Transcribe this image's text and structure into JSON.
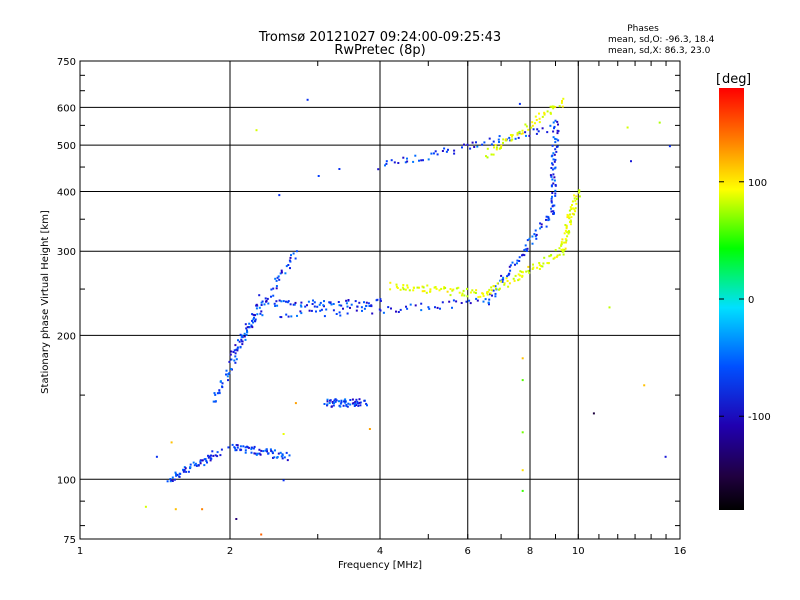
{
  "chart_data": {
    "type": "scatter",
    "title": "Tromsø 20121027 09:24:00-09:25:43",
    "subtitle": "RwPretec (8p)",
    "xlabel": "Frequency [MHz]",
    "ylabel": "Stationary phase Virtual Height [km]",
    "x_scale": "log",
    "y_scale": "log",
    "xlim": [
      1,
      16
    ],
    "ylim": [
      75,
      750
    ],
    "x_ticks": [
      1,
      2,
      4,
      6,
      8,
      10,
      16
    ],
    "x_tick_labels": [
      "1",
      "2",
      "4",
      "6",
      "8",
      "10",
      "16"
    ],
    "y_ticks": [
      75,
      100,
      200,
      300,
      400,
      500,
      600,
      750
    ],
    "y_tick_labels": [
      "75",
      "100",
      "200",
      "300",
      "400",
      "500",
      "600",
      "750"
    ],
    "grid": true,
    "phase_box": {
      "title": "Phases",
      "line_o": "mean, sd,O: -96.3, 18.4",
      "line_x": "mean, sd,X: 86.3, 23.0"
    },
    "colorbar": {
      "label": "deg",
      "range": [
        -180,
        180
      ],
      "ticks": [
        100,
        0,
        -100
      ],
      "tick_labels": [
        "100",
        "0",
        "-100"
      ]
    },
    "series": [
      {
        "name": "O",
        "color_phase": -96.3,
        "segments": [
          {
            "x": [
              1.5,
              1.9
            ],
            "y": [
              100,
              115
            ]
          },
          {
            "x": [
              1.85,
              2.3
            ],
            "y": [
              145,
              240
            ]
          },
          {
            "x": [
              2.0,
              2.7
            ],
            "y": [
              180,
              300
            ]
          },
          {
            "x": [
              2.4,
              4.0
            ],
            "y": [
              235,
              235
            ]
          },
          {
            "x": [
              2.5,
              6.5
            ],
            "y": [
              220,
              236
            ]
          },
          {
            "x": [
              6.5,
              8.8
            ],
            "y": [
              236,
              360
            ]
          },
          {
            "x": [
              8.8,
              9.0
            ],
            "y": [
              360,
              560
            ]
          },
          {
            "x": [
              4.0,
              8.8
            ],
            "y": [
              455,
              545
            ]
          },
          {
            "x": [
              2.0,
              2.6
            ],
            "y": [
              118,
              112
            ]
          },
          {
            "x": [
              3.1,
              3.7
            ],
            "y": [
              145,
              145
            ]
          }
        ]
      },
      {
        "name": "X",
        "color_phase": 86.3,
        "segments": [
          {
            "x": [
              4.2,
              6.5
            ],
            "y": [
              255,
              245
            ]
          },
          {
            "x": [
              6.5,
              9.2
            ],
            "y": [
              245,
              300
            ]
          },
          {
            "x": [
              9.2,
              9.9
            ],
            "y": [
              300,
              400
            ]
          },
          {
            "x": [
              6.5,
              9.3
            ],
            "y": [
              480,
              620
            ]
          }
        ]
      }
    ],
    "scattered_points": [
      {
        "x": 2.85,
        "y": 625,
        "phase": -100
      },
      {
        "x": 2.25,
        "y": 540,
        "phase": 80
      },
      {
        "x": 7.6,
        "y": 613,
        "phase": -100
      },
      {
        "x": 12.5,
        "y": 547,
        "phase": 80
      },
      {
        "x": 14.5,
        "y": 560,
        "phase": 60
      },
      {
        "x": 15.2,
        "y": 500,
        "phase": -100
      },
      {
        "x": 12.7,
        "y": 465,
        "phase": -110
      },
      {
        "x": 3.0,
        "y": 433,
        "phase": -95
      },
      {
        "x": 3.3,
        "y": 448,
        "phase": -100
      },
      {
        "x": 2.5,
        "y": 395,
        "phase": -100
      },
      {
        "x": 11.5,
        "y": 230,
        "phase": 70
      },
      {
        "x": 7.7,
        "y": 180,
        "phase": 120
      },
      {
        "x": 7.7,
        "y": 162,
        "phase": 30
      },
      {
        "x": 7.7,
        "y": 126,
        "phase": 40
      },
      {
        "x": 7.7,
        "y": 105,
        "phase": 110
      },
      {
        "x": 7.7,
        "y": 95,
        "phase": 20
      },
      {
        "x": 13.5,
        "y": 158,
        "phase": 120
      },
      {
        "x": 10.7,
        "y": 138,
        "phase": -160
      },
      {
        "x": 14.9,
        "y": 112,
        "phase": -110
      },
      {
        "x": 1.35,
        "y": 88,
        "phase": 80
      },
      {
        "x": 1.55,
        "y": 87,
        "phase": 120
      },
      {
        "x": 1.75,
        "y": 87,
        "phase": 140
      },
      {
        "x": 2.05,
        "y": 83,
        "phase": -140
      },
      {
        "x": 2.3,
        "y": 77,
        "phase": 150
      },
      {
        "x": 2.55,
        "y": 100,
        "phase": -100
      },
      {
        "x": 2.7,
        "y": 145,
        "phase": 130
      },
      {
        "x": 3.8,
        "y": 128,
        "phase": 130
      },
      {
        "x": 1.42,
        "y": 112,
        "phase": -100
      },
      {
        "x": 1.52,
        "y": 120,
        "phase": 120
      },
      {
        "x": 2.55,
        "y": 125,
        "phase": 90
      }
    ]
  }
}
